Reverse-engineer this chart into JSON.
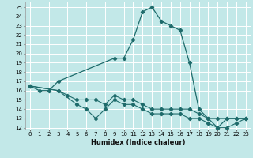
{
  "xlabel": "Humidex (Indice chaleur)",
  "bg_color": "#c2e8e8",
  "grid_color": "#ffffff",
  "line_color": "#1e6b6b",
  "xlim": [
    -0.5,
    23.5
  ],
  "ylim": [
    11.8,
    25.6
  ],
  "yticks": [
    12,
    13,
    14,
    15,
    16,
    17,
    18,
    19,
    20,
    21,
    22,
    23,
    24,
    25
  ],
  "xticks": [
    0,
    1,
    2,
    3,
    4,
    5,
    6,
    7,
    8,
    9,
    10,
    11,
    12,
    13,
    14,
    15,
    16,
    17,
    18,
    19,
    20,
    21,
    22,
    23
  ],
  "line1_x": [
    0,
    1,
    2,
    3,
    9,
    10,
    11,
    12,
    13,
    14,
    15,
    16,
    17,
    18,
    19,
    20,
    21,
    22,
    23
  ],
  "line1_y": [
    16.5,
    16.0,
    16.0,
    17.0,
    19.5,
    19.5,
    21.5,
    24.5,
    25.0,
    23.5,
    23.0,
    22.5,
    19.0,
    14.0,
    13.0,
    12.0,
    13.0,
    13.0,
    13.0
  ],
  "line2_x": [
    0,
    3,
    4,
    5,
    6,
    7,
    8,
    9,
    10,
    11,
    12,
    13,
    14,
    15,
    16,
    17,
    18,
    19,
    20,
    21,
    22,
    23
  ],
  "line2_y": [
    16.5,
    16.0,
    15.5,
    15.0,
    15.0,
    15.0,
    14.5,
    15.5,
    15.0,
    15.0,
    14.5,
    14.0,
    14.0,
    14.0,
    14.0,
    14.0,
    13.5,
    13.0,
    13.0,
    13.0,
    13.0,
    13.0
  ],
  "line3_x": [
    0,
    3,
    5,
    6,
    7,
    8,
    9,
    10,
    11,
    12,
    13,
    14,
    15,
    16,
    17,
    18,
    19,
    20,
    21,
    22,
    23
  ],
  "line3_y": [
    16.5,
    16.0,
    14.5,
    14.0,
    13.0,
    14.0,
    15.0,
    14.5,
    14.5,
    14.0,
    13.5,
    13.5,
    13.5,
    13.5,
    13.0,
    13.0,
    12.5,
    12.0,
    12.0,
    12.5,
    13.0
  ]
}
